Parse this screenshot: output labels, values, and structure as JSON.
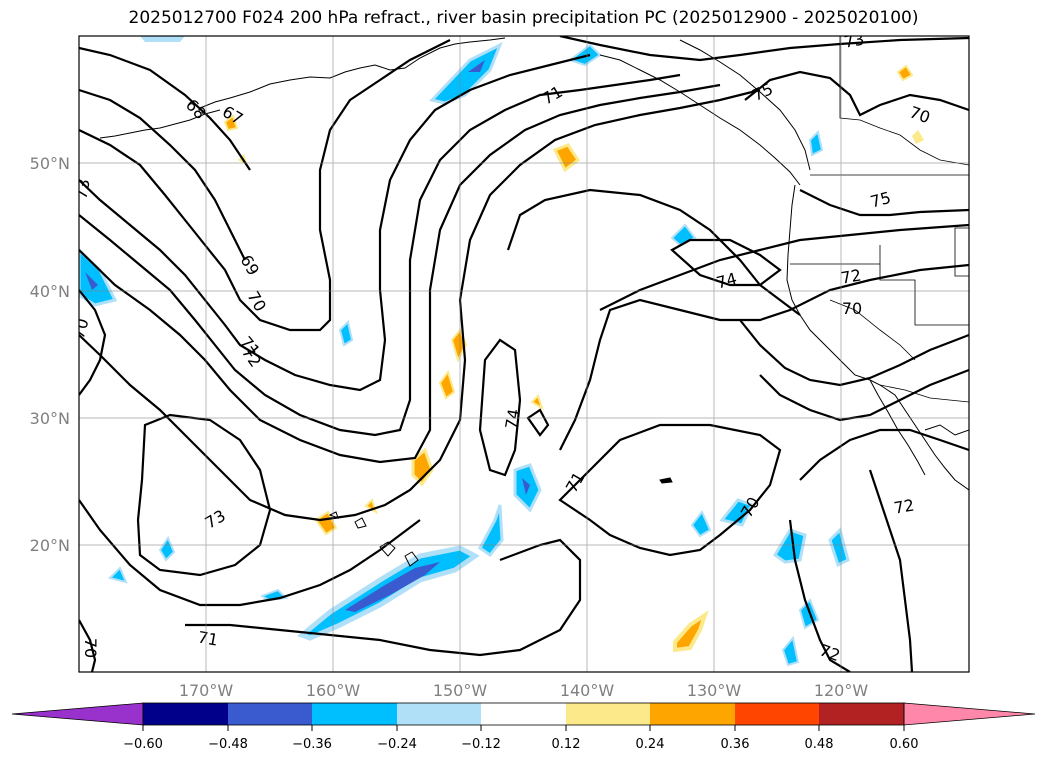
{
  "title": "2025012700 F024 200 hPa refract., river basin precipitation PC (2025012900 - 2025020100)",
  "map": {
    "lat_labels": [
      "50°N",
      "40°N",
      "30°N",
      "20°N"
    ],
    "lon_labels": [
      "170°W",
      "160°W",
      "150°W",
      "140°W",
      "130°W",
      "120°W"
    ],
    "contour_labels": [
      "67",
      "68",
      "69",
      "70",
      "70",
      "70",
      "70",
      "70",
      "71",
      "71",
      "71",
      "71",
      "72",
      "72",
      "72",
      "72",
      "73",
      "73",
      "73",
      "74",
      "74",
      "74",
      "75",
      "75",
      "70"
    ]
  },
  "colorbar": {
    "colors": [
      "#9932cc",
      "#00008b",
      "#3a5bd0",
      "#00bfff",
      "#b0e0f8",
      "#ffffff",
      "#fce98a",
      "#ffa500",
      "#ff4500",
      "#b22222",
      "#ff88aa"
    ],
    "tick_labels": [
      "−0.60",
      "−0.48",
      "−0.36",
      "−0.24",
      "−0.12",
      "0.12",
      "0.24",
      "0.36",
      "0.48",
      "0.60"
    ]
  }
}
